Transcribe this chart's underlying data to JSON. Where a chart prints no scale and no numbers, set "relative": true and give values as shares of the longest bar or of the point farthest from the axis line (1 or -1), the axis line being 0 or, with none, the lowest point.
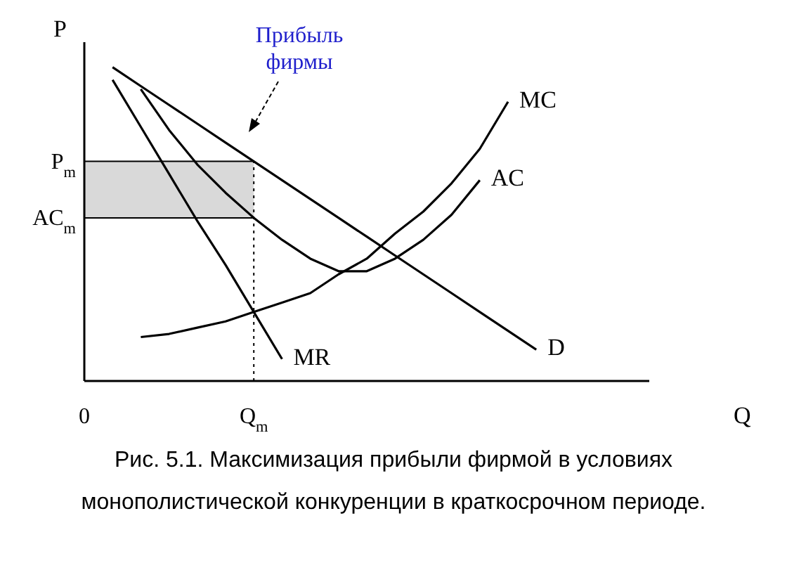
{
  "chart_data": {
    "type": "line",
    "relative": true,
    "xlabel": "Q",
    "ylabel": "P",
    "categories": [
      "0",
      null,
      null,
      null,
      null,
      null,
      "Q$_{m}$",
      null,
      null,
      null,
      null,
      null,
      null,
      null,
      null,
      null,
      null,
      null,
      null,
      null,
      null
    ],
    "series": [
      {
        "name": "MC",
        "color": "#000000",
        "values": [
          null,
          null,
          0.14,
          0.15,
          0.17,
          0.19,
          0.22,
          0.25,
          0.28,
          0.34,
          0.39,
          0.47,
          0.54,
          0.63,
          0.74,
          0.89,
          null,
          null,
          null,
          null,
          null
        ]
      },
      {
        "name": "AC",
        "color": "#000000",
        "values": [
          null,
          null,
          0.93,
          0.8,
          0.69,
          0.6,
          0.52,
          0.45,
          0.39,
          0.35,
          0.35,
          0.39,
          0.45,
          0.53,
          0.64,
          null,
          null,
          null,
          null,
          null,
          null
        ]
      },
      {
        "name": "D",
        "color": "#000000",
        "values": [
          null,
          1.0,
          0.94,
          0.88,
          0.82,
          0.76,
          0.7,
          0.64,
          0.58,
          0.52,
          0.46,
          0.4,
          0.34,
          0.28,
          0.22,
          0.16,
          0.1,
          null,
          null,
          null,
          null
        ]
      },
      {
        "name": "MR",
        "color": "#000000",
        "values": [
          null,
          0.96,
          0.81,
          0.66,
          0.51,
          0.37,
          0.22,
          0.07,
          null,
          null,
          null,
          null,
          null,
          null,
          null,
          null,
          null,
          null,
          null,
          null,
          null
        ]
      }
    ],
    "ref_lines": [
      {
        "axis": "y",
        "value": 0.7,
        "label": "P$_{m}$",
        "line_style": "solid"
      },
      {
        "axis": "y",
        "value": 0.52,
        "label": "AC$_{m}$",
        "line_style": "solid"
      },
      {
        "axis": "x",
        "value": "Q$_{m}$",
        "line_style": "dotted"
      }
    ],
    "bands": [
      {
        "axis": "y",
        "from": 0.52,
        "to": 0.7,
        "color": "#d9d9d9"
      }
    ],
    "annotations": [
      "Прибыль фирмы",
      "Рис. 5.1. Максимизация прибыли фирмой в условиях монополистической конкуренции в краткосрочном периоде."
    ]
  }
}
